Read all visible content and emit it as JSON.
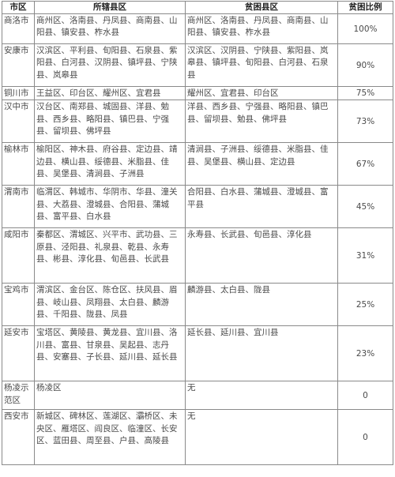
{
  "headers": {
    "city": "市区",
    "jurisdiction": "所辖县区",
    "poor_counties": "贫困县区",
    "ratio": "贫困比例"
  },
  "rows": [
    {
      "city": "商洛市",
      "jurisdiction": "商州区、洛南县、丹凤县、商南县、山阳县、镇安县、柞水县",
      "poor_counties": "商州区、洛南县、丹凤县、商南县、山阳县、镇安县、柞水县",
      "ratio": "100%"
    },
    {
      "city": "安康市",
      "jurisdiction": "汉滨区、平利县、旬阳县、石泉县、紫阳县、白河县、汉阴县、镇坪县、宁陕县、岚皋县",
      "poor_counties": "汉滨区、汉阴县、宁陕县、紫阳县、岚皋县、镇坪县、旬阳县、白河县、石泉县",
      "ratio": "90%"
    },
    {
      "city": "铜川市",
      "jurisdiction": "王益区、印台区、耀州区、宜君县",
      "poor_counties": "耀州区、宜君县、印台区",
      "ratio": "75%"
    },
    {
      "city": "汉中市",
      "jurisdiction": "汉台区、南郑县、城固县、洋县、勉县、西乡县、略阳县、镇巴县、宁强县、留坝县、佛坪县",
      "poor_counties": "洋县、西乡县、宁强县、略阳县、镇巴县、留坝县、勉县、佛坪县",
      "ratio": "73%"
    },
    {
      "city": "榆林市",
      "jurisdiction": "榆阳区、神木县、府谷县、定边县、靖边县、横山县、绥德县、米脂县、佳县、吴堡县、清涧县、子洲县",
      "poor_counties": "清涧县、子洲县、绥德县、米脂县、佳县、吴堡县、横山县、定边县",
      "ratio": "67%"
    },
    {
      "city": "渭南市",
      "jurisdiction": "临渭区、韩城市、华阴市、华县、潼关县、大荔县、澄城县、合阳县、蒲城县、富平县、白水县",
      "poor_counties": "合阳县、白水县、蒲城县、澄城县、富平县",
      "ratio": "45%"
    },
    {
      "city": "咸阳市",
      "jurisdiction": "秦都区、渭城区、兴平市、武功县、三原县、泾阳县、礼泉县、乾县、永寿县、彬县、淳化县、旬邑县、长武县",
      "poor_counties": "永寿县、长武县、旬邑县、淳化县",
      "ratio": "31%"
    },
    {
      "city": "宝鸡市",
      "jurisdiction": "渭滨区、金台区、陈仓区、扶风县、眉县、岐山县、凤翔县、太白县、麟游县、千阳县、陇县、凤县",
      "poor_counties": "麟游县、太白县、陇县",
      "ratio": "25%"
    },
    {
      "city": "延安市",
      "jurisdiction": "宝塔区、黄陵县、黄龙县、宜川县、洛川县、富县、甘泉县、吴起县、志丹县、安塞县、子长县、延川县、延长县",
      "poor_counties": "延长县、延川县、宜川县",
      "ratio": "23%"
    },
    {
      "city": "杨凌示范区",
      "jurisdiction": "杨凌区",
      "poor_counties": "无",
      "ratio": "0"
    },
    {
      "city": "西安市",
      "jurisdiction": "新城区、碑林区、莲湖区、灞桥区、未央区、雁塔区、阎良区、临潼区、长安区、蓝田县、周至县、户县、高陵县",
      "poor_counties": "无",
      "ratio": "0"
    }
  ]
}
